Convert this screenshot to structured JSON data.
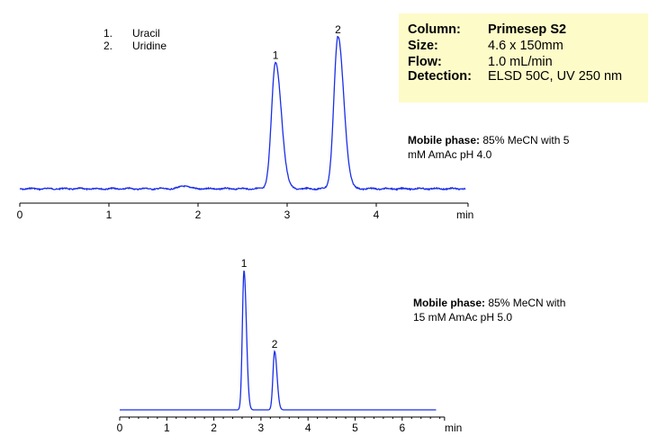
{
  "legend": {
    "items": [
      {
        "num": "1.",
        "label": "Uracil"
      },
      {
        "num": "2.",
        "label": "Uridine"
      }
    ]
  },
  "info_box": {
    "background": "#fdfbc8",
    "rows": [
      {
        "key": "Column:",
        "value": "Primesep S2"
      },
      {
        "key": "Size:",
        "value": "4.6 x 150mm"
      },
      {
        "key": "Flow:",
        "value": "1.0 mL/min"
      },
      {
        "key": "Detection:",
        "value": "ELSD 50C, UV 250 nm"
      }
    ]
  },
  "top_panel": {
    "mobile_phase_label": "Mobile phase:",
    "mobile_phase_line1": " 85% MeCN with 5",
    "mobile_phase_line2": "mM  AmAc pH 4.0"
  },
  "bottom_panel": {
    "mobile_phase_label": "Mobile phase:",
    "mobile_phase_line1": " 85% MeCN with",
    "mobile_phase_line2": "15 mM  AmAc pH 5.0"
  },
  "chart_data": [
    {
      "type": "line",
      "title": "",
      "xlabel": "min",
      "ylabel": "",
      "xlim": [
        0,
        5.03
      ],
      "x_ticks": [
        "0",
        "1",
        "2",
        "3",
        "4"
      ],
      "minor_ticks": false,
      "grid": false,
      "trace_color": "#1a2fe8",
      "conditions": "Mobile phase: 85% MeCN with 5 mM AmAc pH 4.0",
      "peaks": [
        {
          "label": "1",
          "compound": "Uracil",
          "retention_time_min": 2.87,
          "relative_height": 0.83
        },
        {
          "label": "2",
          "compound": "Uridine",
          "retention_time_min": 3.57,
          "relative_height": 1.0
        }
      ],
      "minor_features": [
        {
          "retention_time_min": 1.85,
          "relative_height": 0.02
        }
      ]
    },
    {
      "type": "line",
      "title": "",
      "xlabel": "min",
      "ylabel": "",
      "xlim": [
        0,
        6.9
      ],
      "x_ticks": [
        "0",
        "1",
        "2",
        "3",
        "4",
        "5",
        "6"
      ],
      "minor_ticks": true,
      "grid": false,
      "trace_color": "#1a2fe8",
      "conditions": "Mobile phase: 85% MeCN with 15 mM AmAc pH 5.0",
      "peaks": [
        {
          "label": "1",
          "compound": "Uracil",
          "retention_time_min": 2.64,
          "relative_height": 1.0
        },
        {
          "label": "2",
          "compound": "Uridine",
          "retention_time_min": 3.29,
          "relative_height": 0.42
        }
      ]
    }
  ]
}
